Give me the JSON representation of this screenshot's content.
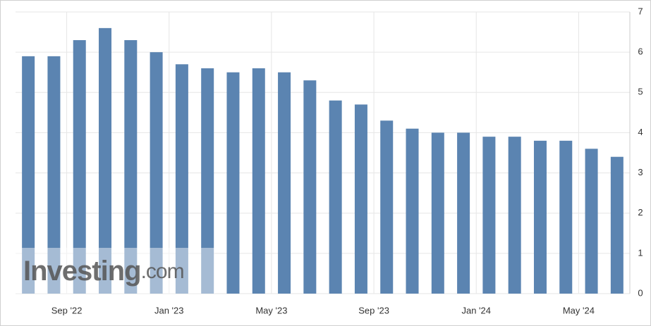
{
  "chart_data": {
    "type": "bar",
    "categories": [
      null,
      null,
      "Sep '22",
      null,
      null,
      null,
      "Jan '23",
      null,
      null,
      null,
      "May '23",
      null,
      null,
      null,
      "Sep '23",
      null,
      null,
      null,
      "Jan '24",
      null,
      null,
      null,
      "May '24",
      null
    ],
    "values": [
      5.9,
      5.9,
      6.3,
      6.6,
      6.3,
      6.0,
      5.7,
      5.6,
      5.5,
      5.6,
      5.5,
      5.3,
      4.8,
      4.7,
      4.3,
      4.1,
      4.0,
      4.0,
      3.9,
      3.9,
      3.8,
      3.8,
      3.6,
      3.4
    ],
    "color": "#5b84b1",
    "ylim": [
      0,
      7
    ],
    "yticks": [
      0,
      1,
      2,
      3,
      4,
      5,
      6,
      7
    ],
    "grid": true,
    "watermark": {
      "brand": "Investing",
      "domain": ".com"
    }
  }
}
